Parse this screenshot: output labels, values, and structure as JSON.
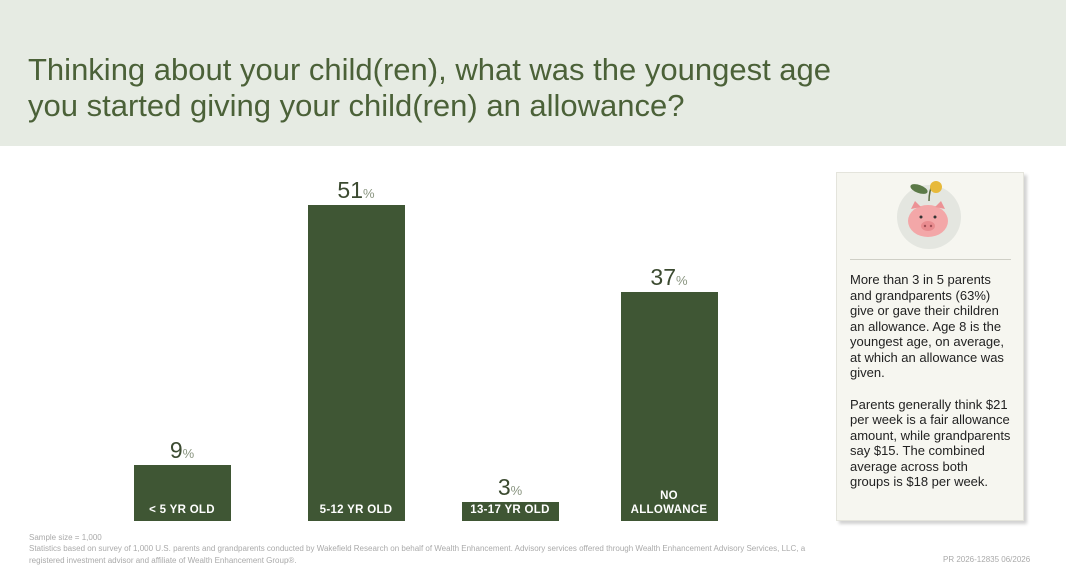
{
  "chart_data": {
    "type": "bar",
    "title": "Thinking about your child(ren), what was the youngest age you started giving your child(ren) an allowance?",
    "categories": [
      "< 5 YR OLD",
      "5-12 YR OLD",
      "13-17 YR OLD",
      "NO ALLOWANCE"
    ],
    "values": [
      9,
      51,
      3,
      37
    ],
    "value_suffix": "%",
    "color": "#3f5634"
  },
  "sidebar": {
    "paragraphs": [
      "More than 3 in 5 parents and grandparents (63%) give or gave their children an allowance. Age 8 is the youngest age, on average, at which an allowance was given.",
      "Parents generally think $21 per week is a fair allowance amount, while grandparents say $15. The combined average across both groups is $18 per week."
    ]
  },
  "footer": {
    "notes": [
      "Sample size = 1,000",
      "Statistics based on survey of 1,000 U.S. parents and grandparents conducted by Wakefield Research on behalf of Wealth Enhancement. Advisory services offered through Wealth Enhancement Advisory Services, LLC, a registered investment advisor and affiliate of Wealth Enhancement Group®."
    ],
    "code": "PR 2026-12835 06/2026"
  }
}
